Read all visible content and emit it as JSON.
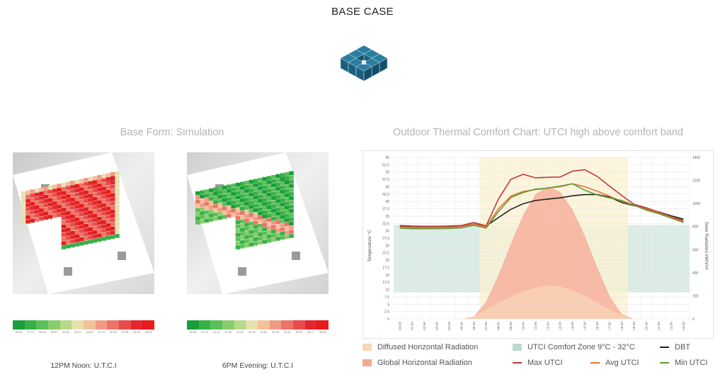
{
  "header": {
    "title": "BASE CASE"
  },
  "icon": {
    "name": "building-model-icon",
    "color": "#1b5f7e"
  },
  "simulation": {
    "title": "Base Form: Simulation",
    "noon_caption": "12PM Noon: U.T.C.I",
    "evening_caption": "6PM Evening: U.T.C.I",
    "scale_colors": [
      "#1a9e3a",
      "#38b048",
      "#5cc05a",
      "#8acd6c",
      "#b6d98a",
      "#e6e0ad",
      "#f3c29b",
      "#f09a85",
      "#ec7469",
      "#e84c4a",
      "#e2282f",
      "#e81a1a"
    ],
    "noon_scale_ticks": [
      "35.93",
      "37.74",
      "38.36",
      "38.97",
      "39.59",
      "40.21",
      "40.83",
      "41.44",
      "42.06",
      "42.68",
      "43.30",
      "43.91"
    ],
    "evening_scale_ticks": [
      "30.94",
      "31.42",
      "31.91",
      "32.39",
      "32.87",
      "33.36",
      "33.84",
      "34.32",
      "34.81",
      "35.29",
      "35.77",
      "36.26"
    ]
  },
  "chart_data": {
    "type": "line",
    "title": "Outdoor Thermal Comfort Chart: UTCI high above comfort band",
    "ylabel": "Temperature °C",
    "y2label": "Solar Radiation kWh/m²",
    "ylim": [
      0,
      55
    ],
    "y2lim": [
      0,
      1400
    ],
    "yticks": [
      "0",
      "2.5",
      "5",
      "7.5",
      "10",
      "12.5",
      "15",
      "17.5",
      "20",
      "22.5",
      "25",
      "27.5",
      "30",
      "32.5",
      "35",
      "37.5",
      "40",
      "42.5",
      "45",
      "47.5",
      "50",
      "52.5",
      "55"
    ],
    "y2ticks": [
      "0",
      "200",
      "400",
      "600",
      "800",
      "1000",
      "1200",
      "1400"
    ],
    "categories": [
      "00:00",
      "01:00",
      "02:00",
      "03:00",
      "04:00",
      "05:00",
      "06:00",
      "07:00",
      "08:00",
      "09:00",
      "10:00",
      "11:00",
      "12:00",
      "13:00",
      "14:00",
      "15:00",
      "16:00",
      "17:00",
      "18:00",
      "19:00",
      "20:00",
      "21:00",
      "22:00",
      "23:00"
    ],
    "comfort_zone": {
      "name": "UTCI Comfort Zone 9°C - 32°C",
      "range": [
        9,
        32
      ],
      "color": "#cfe6de"
    },
    "daylight_band": {
      "range": [
        7,
        19
      ],
      "color": "#fbf3d2"
    },
    "series": [
      {
        "name": "Global Horizontal Radiation",
        "axis": "y2",
        "kind": "area",
        "color": "#f5a794",
        "values": [
          0,
          0,
          0,
          0,
          0,
          0,
          20,
          150,
          380,
          650,
          900,
          1080,
          1150,
          1100,
          950,
          720,
          450,
          200,
          40,
          0,
          0,
          0,
          0,
          0
        ]
      },
      {
        "name": "Diffused Horizontal Radiation",
        "axis": "y2",
        "kind": "area",
        "color": "#f9d6b8",
        "values": [
          0,
          0,
          0,
          0,
          0,
          0,
          20,
          80,
          140,
          190,
          240,
          270,
          290,
          280,
          250,
          200,
          140,
          80,
          30,
          0,
          0,
          0,
          0,
          0
        ]
      },
      {
        "name": "DBT",
        "axis": "y",
        "kind": "line",
        "color": "#222222",
        "values": [
          31.5,
          31.2,
          31.2,
          31.2,
          31.3,
          31.5,
          32.3,
          31.6,
          34.5,
          37.3,
          39.2,
          40.3,
          40.8,
          41.2,
          41.9,
          42.3,
          42.3,
          41.5,
          39.6,
          38.5,
          37.6,
          36.4,
          35.1,
          34.0
        ]
      },
      {
        "name": "Max UTCI",
        "axis": "y",
        "kind": "line",
        "color": "#c0393b",
        "values": [
          31.8,
          31.6,
          31.5,
          31.5,
          31.6,
          31.8,
          32.8,
          31.7,
          40.8,
          47.5,
          49.2,
          48.0,
          48.2,
          48.3,
          50.3,
          50.8,
          48.5,
          45.2,
          42.0,
          39.0,
          37.8,
          36.3,
          34.8,
          33.5
        ]
      },
      {
        "name": "Avg UTCI",
        "axis": "y",
        "kind": "line",
        "color": "#e8703a",
        "values": [
          31.3,
          31.1,
          31.1,
          31.1,
          31.2,
          31.4,
          32.3,
          31.3,
          37.5,
          41.8,
          43.4,
          44.0,
          44.5,
          45.0,
          46.0,
          45.0,
          43.5,
          41.8,
          40.0,
          38.6,
          37.4,
          36.0,
          34.6,
          33.1
        ]
      },
      {
        "name": "Min UTCI",
        "axis": "y",
        "kind": "line",
        "color": "#5e9b34",
        "values": [
          30.9,
          30.7,
          30.7,
          30.7,
          30.8,
          31.0,
          31.9,
          30.9,
          36.5,
          41.3,
          43.0,
          44.2,
          44.5,
          45.2,
          46.0,
          43.8,
          42.2,
          41.2,
          40.3,
          38.7,
          37.0,
          35.8,
          34.3,
          32.8
        ]
      }
    ],
    "legend": [
      {
        "label": "Diffused Horizontal Radiation",
        "kind": "box",
        "color": "#f9d6b8"
      },
      {
        "label": "UTCI Comfort Zone 9°C - 32°C",
        "kind": "box",
        "color": "#b9dbd0"
      },
      {
        "label": "DBT",
        "kind": "line",
        "color": "#222222"
      },
      {
        "label": "Global Horizontal Radiation",
        "kind": "box",
        "color": "#f5a794"
      },
      {
        "label": "Max UTCI",
        "kind": "line",
        "color": "#c0393b"
      },
      {
        "label": "Avg UTCI",
        "kind": "line",
        "color": "#e8703a"
      },
      {
        "label": "Min UTCI",
        "kind": "line",
        "color": "#5e9b34"
      }
    ]
  }
}
